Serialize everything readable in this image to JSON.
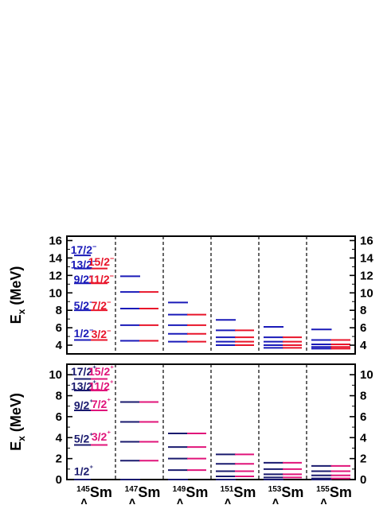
{
  "chart_data": [
    {
      "type": "level_scheme",
      "panel": "negative_parity",
      "ylabel": "E",
      "ylabel_sub": "x",
      "ylabel_unit": "(MeV)",
      "ylim": [
        3,
        16.5
      ],
      "yticks": [
        4,
        6,
        8,
        10,
        12,
        14,
        16
      ],
      "columns": [
        {
          "nucleus": "145Sm",
          "blue": [
            14.3,
            12.8,
            11.1,
            8.0,
            4.6
          ],
          "red": [
            12.8,
            11.1,
            8.0,
            4.6
          ],
          "labels": [
            {
              "text": "17/2−",
              "color": "blue",
              "y": 14.6
            },
            {
              "text": "13/2−",
              "color": "blue",
              "y": 12.9
            },
            {
              "text": "15/2−",
              "color": "red",
              "y": 13.2
            },
            {
              "text": "9/2−",
              "color": "blue",
              "y": 11.2
            },
            {
              "text": "11/2−",
              "color": "red",
              "y": 11.2
            },
            {
              "text": "5/2−",
              "color": "blue",
              "y": 8.2
            },
            {
              "text": "7/2−",
              "color": "red",
              "y": 8.2
            },
            {
              "text": "1/2−",
              "color": "blue",
              "y": 5.0
            },
            {
              "text": "3/2−",
              "color": "red",
              "y": 4.9
            }
          ]
        },
        {
          "nucleus": "147Sm",
          "blue": [
            11.9,
            10.1,
            8.2,
            6.3,
            4.5
          ],
          "red": [
            10.1,
            8.2,
            6.3,
            4.5
          ]
        },
        {
          "nucleus": "149Sm",
          "blue": [
            8.9,
            7.5,
            6.3,
            5.3,
            4.4
          ],
          "red": [
            7.5,
            6.3,
            5.3,
            4.4
          ]
        },
        {
          "nucleus": "151Sm",
          "blue": [
            6.9,
            5.7,
            4.9,
            4.4,
            4.0
          ],
          "red": [
            5.7,
            4.9,
            4.4,
            4.0
          ]
        },
        {
          "nucleus": "153Sm",
          "blue": [
            6.1,
            4.9,
            4.4,
            4.0,
            3.7
          ],
          "red": [
            4.9,
            4.4,
            4.0,
            3.7
          ]
        },
        {
          "nucleus": "155Sm",
          "blue": [
            5.8,
            4.6,
            4.1,
            3.8,
            3.6
          ],
          "red": [
            4.6,
            4.1,
            3.8,
            3.6
          ]
        }
      ]
    },
    {
      "type": "level_scheme",
      "panel": "positive_parity",
      "ylabel": "E",
      "ylabel_sub": "x",
      "ylabel_unit": "(MeV)",
      "ylim": [
        0,
        11
      ],
      "yticks": [
        0,
        2,
        4,
        6,
        8,
        10
      ],
      "columns": [
        {
          "nucleus": "145Sm",
          "blue": [
            9.6,
            8.5,
            6.6,
            3.3,
            0.0
          ],
          "red": [
            9.6,
            8.5,
            6.6,
            3.3
          ],
          "labels": [
            {
              "text": "17/2⁺",
              "color": "blue",
              "y": 10.0
            },
            {
              "text": "15/2⁺",
              "color": "pink",
              "y": 10.0
            },
            {
              "text": "13/2⁺",
              "color": "blue",
              "y": 8.6
            },
            {
              "text": "11/2⁺",
              "color": "pink",
              "y": 8.6
            },
            {
              "text": "9/2⁺",
              "color": "blue",
              "y": 6.8
            },
            {
              "text": "7/2⁺",
              "color": "pink",
              "y": 6.9
            },
            {
              "text": "5/2⁺",
              "color": "blue",
              "y": 3.6
            },
            {
              "text": "3/2⁺",
              "color": "pink",
              "y": 3.8
            },
            {
              "text": "1/2⁺",
              "color": "blue",
              "y": 0.5
            }
          ]
        },
        {
          "nucleus": "147Sm",
          "blue": [
            7.4,
            5.5,
            3.6,
            1.8,
            0.0
          ],
          "red": [
            7.4,
            5.5,
            3.6,
            1.8
          ]
        },
        {
          "nucleus": "149Sm",
          "blue": [
            4.4,
            3.1,
            2.0,
            0.9,
            0.0
          ],
          "red": [
            4.4,
            3.1,
            2.0,
            0.9
          ]
        },
        {
          "nucleus": "151Sm",
          "blue": [
            2.4,
            1.5,
            0.8,
            0.3,
            0.0
          ],
          "red": [
            2.4,
            1.5,
            0.8,
            0.3
          ]
        },
        {
          "nucleus": "153Sm",
          "blue": [
            1.6,
            1.0,
            0.5,
            0.2,
            0.0
          ],
          "red": [
            1.6,
            1.0,
            0.5,
            0.2
          ]
        },
        {
          "nucleus": "155Sm",
          "blue": [
            1.3,
            0.8,
            0.4,
            0.1,
            0.0
          ],
          "red": [
            1.3,
            0.8,
            0.4,
            0.1
          ]
        }
      ]
    }
  ],
  "nuclei_labels": [
    {
      "mass": "145",
      "element": "Sm",
      "sub": "Λ"
    },
    {
      "mass": "147",
      "element": "Sm",
      "sub": "Λ"
    },
    {
      "mass": "149",
      "element": "Sm",
      "sub": "Λ"
    },
    {
      "mass": "151",
      "element": "Sm",
      "sub": "Λ"
    },
    {
      "mass": "153",
      "element": "Sm",
      "sub": "Λ"
    },
    {
      "mass": "155",
      "element": "Sm",
      "sub": "Λ"
    }
  ],
  "colors": {
    "blue": "#1a1ab8",
    "navy": "#1a1a6e",
    "red": "#e8142a",
    "pink": "#e0147a",
    "axis": "#000000"
  }
}
